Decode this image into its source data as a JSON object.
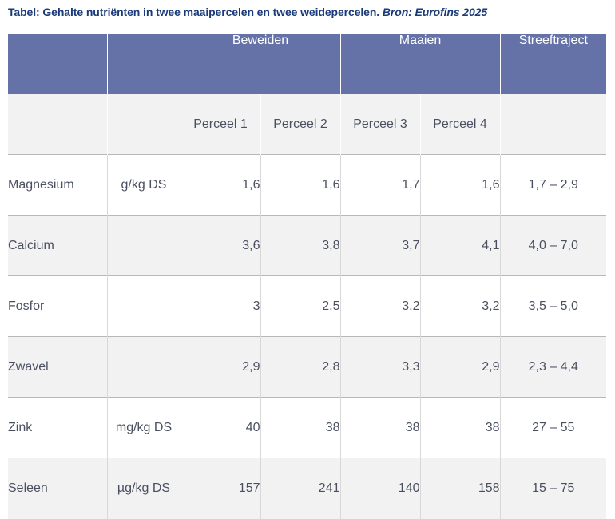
{
  "caption": {
    "text": "Tabel: Gehalte nutriënten in twee maaipercelen en twee weidepercelen.",
    "source": "Bron: Eurofins 2025"
  },
  "table": {
    "group_headers": [
      "",
      "",
      "Beweiden",
      "Maaien",
      "Streeftraject"
    ],
    "plot_headers": [
      "Perceel 1",
      "Perceel 2",
      "Perceel 3",
      "Perceel 4"
    ],
    "rows": [
      {
        "name": "Magnesium",
        "unit": "g/kg DS",
        "values": [
          "1,6",
          "1,6",
          "1,7",
          "1,6"
        ],
        "range": "1,7 – 2,9"
      },
      {
        "name": "Calcium",
        "unit": "",
        "values": [
          "3,6",
          "3,8",
          "3,7",
          "4,1"
        ],
        "range": "4,0 – 7,0"
      },
      {
        "name": "Fosfor",
        "unit": "",
        "values": [
          "3",
          "2,5",
          "3,2",
          "3,2"
        ],
        "range": "3,5 – 5,0"
      },
      {
        "name": "Zwavel",
        "unit": "",
        "values": [
          "2,9",
          "2,8",
          "3,3",
          "2,9"
        ],
        "range": "2,3 – 4,4"
      },
      {
        "name": "Zink",
        "unit": "mg/kg DS",
        "values": [
          "40",
          "38",
          "38",
          "38"
        ],
        "range": "27 – 55"
      },
      {
        "name": "Seleen",
        "unit": "µg/kg DS",
        "values": [
          "157",
          "241",
          "140",
          "158"
        ],
        "range": "15 – 75"
      }
    ]
  },
  "colors": {
    "header_bg": "#6472a8",
    "caption_text": "#1a3a78",
    "band_bg": "#f2f2f2"
  }
}
